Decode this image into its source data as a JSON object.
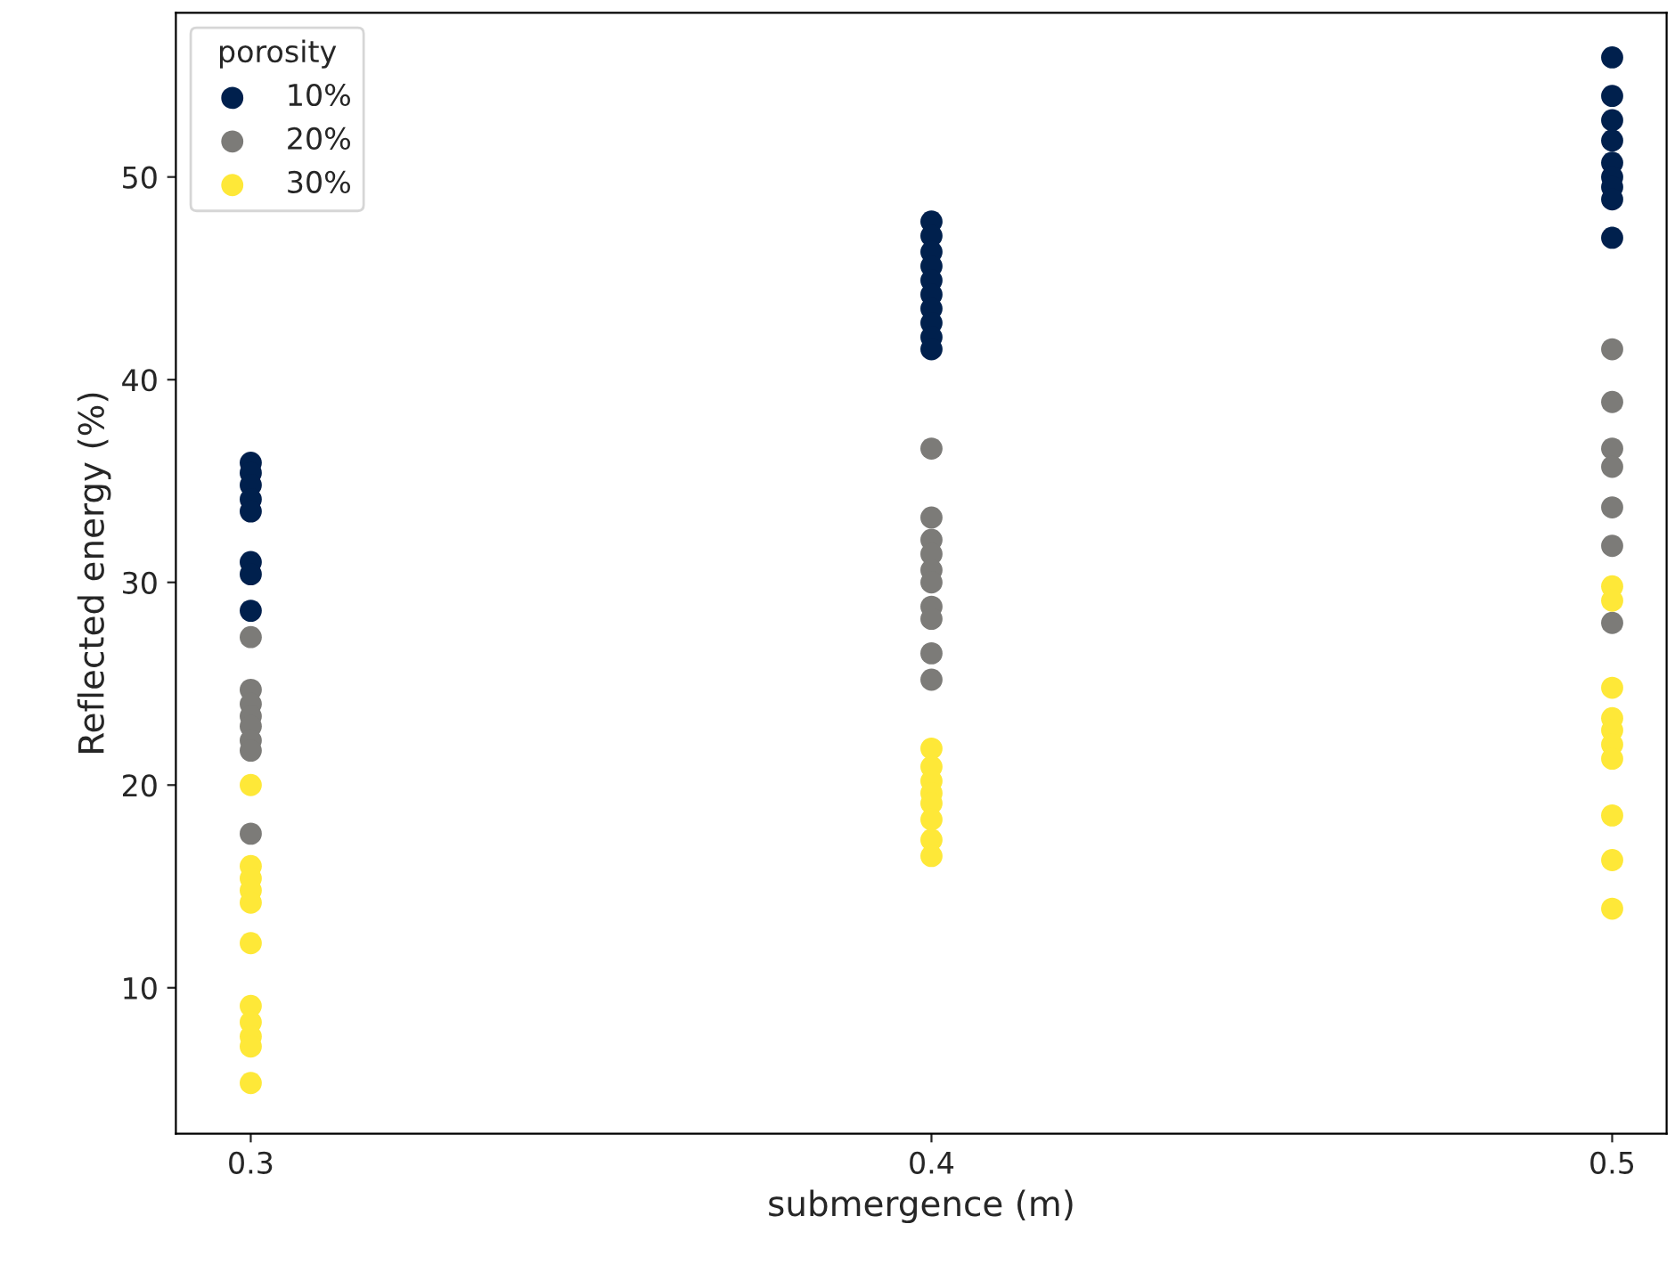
{
  "chart_data": {
    "type": "scatter",
    "xlabel": "submergence (m)",
    "ylabel": "Reflected energy (%)",
    "legend_title": "porosity",
    "legend": "top left",
    "marker": "circle",
    "grid": false,
    "xlim": [
      0.289,
      0.508
    ],
    "ylim": [
      2.8,
      58.1
    ],
    "xticks": [
      0.3,
      0.4,
      0.5
    ],
    "yticks": [
      10,
      20,
      30,
      40,
      50
    ],
    "series": [
      {
        "name": "10%",
        "color": "#00204d",
        "x": [
          0.3,
          0.3,
          0.3,
          0.3,
          0.3,
          0.3,
          0.3,
          0.3,
          0.4,
          0.4,
          0.4,
          0.4,
          0.4,
          0.4,
          0.4,
          0.4,
          0.4,
          0.4,
          0.5,
          0.5,
          0.5,
          0.5,
          0.5,
          0.5,
          0.5,
          0.5,
          0.5
        ],
        "values": [
          35.9,
          35.4,
          34.8,
          34.1,
          33.5,
          31.0,
          30.4,
          28.6,
          47.8,
          47.1,
          46.3,
          45.6,
          44.9,
          44.2,
          43.5,
          42.8,
          42.1,
          41.5,
          55.9,
          54.0,
          52.8,
          51.8,
          50.7,
          50.0,
          49.5,
          48.9,
          47.0
        ]
      },
      {
        "name": "20%",
        "color": "#7c7b78",
        "x": [
          0.3,
          0.3,
          0.3,
          0.3,
          0.3,
          0.3,
          0.3,
          0.3,
          0.4,
          0.4,
          0.4,
          0.4,
          0.4,
          0.4,
          0.4,
          0.4,
          0.4,
          0.4,
          0.5,
          0.5,
          0.5,
          0.5,
          0.5,
          0.5,
          0.5
        ],
        "values": [
          27.3,
          24.7,
          24.0,
          23.4,
          22.9,
          22.2,
          21.7,
          17.6,
          36.6,
          33.2,
          32.1,
          31.4,
          30.6,
          30.0,
          28.8,
          28.2,
          26.5,
          25.2,
          41.5,
          38.9,
          36.6,
          35.7,
          33.7,
          31.8,
          28.0
        ]
      },
      {
        "name": "30%",
        "color": "#fee838",
        "x": [
          0.3,
          0.3,
          0.3,
          0.3,
          0.3,
          0.3,
          0.3,
          0.3,
          0.3,
          0.3,
          0.3,
          0.4,
          0.4,
          0.4,
          0.4,
          0.4,
          0.4,
          0.4,
          0.4,
          0.5,
          0.5,
          0.5,
          0.5,
          0.5,
          0.5,
          0.5,
          0.5,
          0.5,
          0.5
        ],
        "values": [
          20.0,
          16.0,
          15.4,
          14.8,
          14.2,
          12.2,
          9.1,
          8.3,
          7.6,
          7.1,
          5.3,
          21.8,
          20.9,
          20.2,
          19.6,
          19.1,
          18.3,
          17.3,
          16.5,
          29.8,
          29.1,
          24.8,
          23.3,
          22.7,
          22.0,
          21.3,
          18.5,
          16.3,
          13.9
        ]
      }
    ]
  }
}
